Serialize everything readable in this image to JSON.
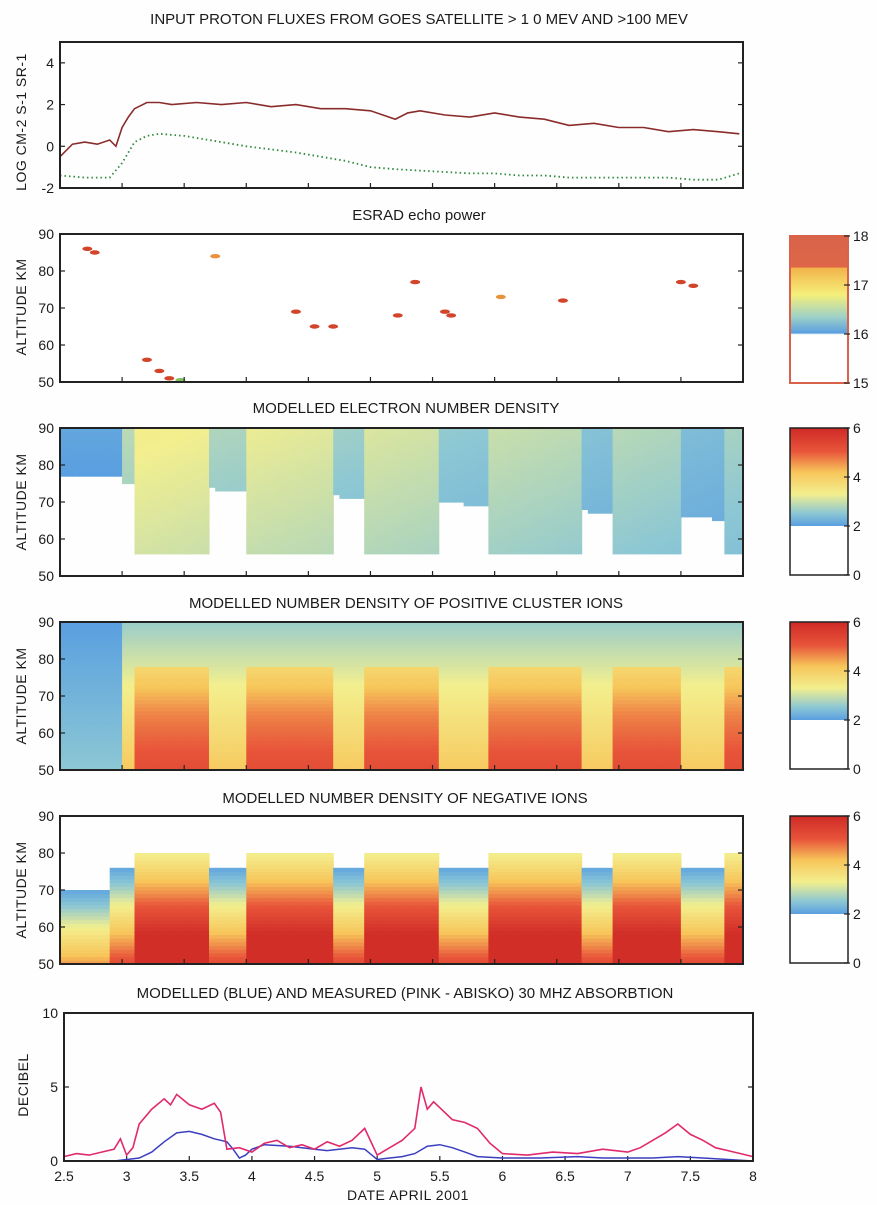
{
  "chart_data": [
    {
      "type": "line",
      "title": "INPUT PROTON FLUXES FROM GOES SATELLITE > 1 0 MEV AND >100 MEV",
      "ylabel": "LOG CM-2 S-1 SR-1",
      "xlim": [
        2.5,
        8
      ],
      "ylim": [
        -2,
        5
      ],
      "yticks": [
        "4",
        "2",
        "0",
        "-2"
      ],
      "series": [
        {
          "x": [
            2.5,
            2.6,
            2.7,
            2.8,
            2.9,
            2.95,
            3.0,
            3.05,
            3.1,
            3.2,
            3.3,
            3.4,
            3.6,
            3.8,
            4.0,
            4.2,
            4.4,
            4.6,
            4.8,
            5.0,
            5.1,
            5.2,
            5.3,
            5.4,
            5.6,
            5.8,
            6.0,
            6.2,
            6.4,
            6.6,
            6.8,
            7.0,
            7.2,
            7.4,
            7.6,
            7.8,
            7.97
          ],
          "values": [
            -0.5,
            0.1,
            0.2,
            0.1,
            0.3,
            0.0,
            0.9,
            1.4,
            1.8,
            2.1,
            2.1,
            2.0,
            2.1,
            2.0,
            2.1,
            1.9,
            2.0,
            1.8,
            1.8,
            1.7,
            1.5,
            1.3,
            1.6,
            1.7,
            1.5,
            1.4,
            1.6,
            1.4,
            1.3,
            1.0,
            1.1,
            0.9,
            0.9,
            0.7,
            0.8,
            0.7,
            0.6
          ]
        },
        {
          "x": [
            2.5,
            2.7,
            2.9,
            3.0,
            3.1,
            3.2,
            3.3,
            3.5,
            3.7,
            4.0,
            4.4,
            4.8,
            5.0,
            5.2,
            5.5,
            5.8,
            6.0,
            6.2,
            6.4,
            6.6,
            6.8,
            7.0,
            7.2,
            7.4,
            7.6,
            7.8,
            7.97
          ],
          "values": [
            -1.4,
            -1.5,
            -1.5,
            -0.8,
            0.2,
            0.5,
            0.6,
            0.5,
            0.3,
            0.0,
            -0.3,
            -0.7,
            -1.0,
            -1.1,
            -1.2,
            -1.3,
            -1.3,
            -1.4,
            -1.4,
            -1.5,
            -1.5,
            -1.5,
            -1.5,
            -1.5,
            -1.6,
            -1.6,
            -1.3
          ]
        }
      ]
    },
    {
      "type": "heatmap",
      "title": "ESRAD echo power",
      "ylabel": "ALTITUDE KM",
      "xlim": [
        2.5,
        8
      ],
      "ylim": [
        50,
        90
      ],
      "yticks": [
        "90",
        "80",
        "70",
        "60",
        "50"
      ],
      "colorbar": {
        "min": 15,
        "max": 18,
        "ticks": [
          "18",
          "17",
          "16",
          "15"
        ]
      },
      "echoes": [
        {
          "x": 2.72,
          "alt": 86,
          "power": 17.9
        },
        {
          "x": 2.78,
          "alt": 85,
          "power": 17.8
        },
        {
          "x": 3.2,
          "alt": 56,
          "power": 17.9
        },
        {
          "x": 3.3,
          "alt": 53,
          "power": 17.8
        },
        {
          "x": 3.38,
          "alt": 51,
          "power": 17.9
        },
        {
          "x": 3.47,
          "alt": 50.5,
          "power": 17.2
        },
        {
          "x": 3.75,
          "alt": 84,
          "power": 17.6
        },
        {
          "x": 4.4,
          "alt": 69,
          "power": 17.8
        },
        {
          "x": 4.55,
          "alt": 65,
          "power": 17.9
        },
        {
          "x": 4.7,
          "alt": 65,
          "power": 17.9
        },
        {
          "x": 5.22,
          "alt": 68,
          "power": 17.7
        },
        {
          "x": 5.36,
          "alt": 77,
          "power": 17.9
        },
        {
          "x": 5.6,
          "alt": 69,
          "power": 17.9
        },
        {
          "x": 5.65,
          "alt": 68,
          "power": 17.8
        },
        {
          "x": 6.05,
          "alt": 73,
          "power": 17.5
        },
        {
          "x": 6.55,
          "alt": 72,
          "power": 17.8
        },
        {
          "x": 7.5,
          "alt": 77,
          "power": 17.9
        },
        {
          "x": 7.6,
          "alt": 76,
          "power": 17.7
        }
      ]
    },
    {
      "type": "heatmap",
      "title": "MODELLED ELECTRON NUMBER DENSITY",
      "ylabel": "ALTITUDE KM",
      "xlim": [
        2.5,
        8
      ],
      "ylim": [
        50,
        90
      ],
      "yticks": [
        "90",
        "80",
        "70",
        "60",
        "50"
      ],
      "colorbar": {
        "min": 0,
        "max": 6,
        "ticks": [
          "6",
          "4",
          "2",
          "0"
        ]
      },
      "model": "electron"
    },
    {
      "type": "heatmap",
      "title": "MODELLED NUMBER DENSITY OF POSITIVE CLUSTER IONS",
      "ylabel": "ALTITUDE KM",
      "xlim": [
        2.5,
        8
      ],
      "ylim": [
        50,
        90
      ],
      "yticks": [
        "90",
        "80",
        "70",
        "60",
        "50"
      ],
      "colorbar": {
        "min": 0,
        "max": 6,
        "ticks": [
          "6",
          "4",
          "2",
          "0"
        ]
      },
      "model": "positive"
    },
    {
      "type": "heatmap",
      "title": "MODELLED NUMBER DENSITY OF NEGATIVE IONS",
      "ylabel": "ALTITUDE KM",
      "xlim": [
        2.5,
        8
      ],
      "ylim": [
        50,
        90
      ],
      "yticks": [
        "90",
        "80",
        "70",
        "60",
        "50"
      ],
      "colorbar": {
        "min": 0,
        "max": 6,
        "ticks": [
          "6",
          "4",
          "2",
          "0"
        ]
      },
      "model": "negative"
    },
    {
      "type": "line",
      "title": "MODELLED (BLUE) AND MEASURED (PINK - ABISKO) 30 MHZ ABSORBTION",
      "ylabel": "DECIBEL",
      "xlabel": "DATE APRIL 2001",
      "xlim": [
        2.5,
        8
      ],
      "ylim": [
        0,
        10
      ],
      "yticks": [
        "10",
        "5",
        "0"
      ],
      "xticks": [
        "2.5",
        "3",
        "3.5",
        "4",
        "4.5",
        "5",
        "5.5",
        "6",
        "6.5",
        "7",
        "7.5",
        "8"
      ],
      "series": [
        {
          "x": [
            2.5,
            2.8,
            2.9,
            3.0,
            3.1,
            3.2,
            3.3,
            3.4,
            3.5,
            3.6,
            3.7,
            3.8,
            3.85,
            3.9,
            3.95,
            4.0,
            4.1,
            4.3,
            4.5,
            4.6,
            4.8,
            4.9,
            5.0,
            5.1,
            5.2,
            5.3,
            5.4,
            5.5,
            5.6,
            5.7,
            5.8,
            6.0,
            6.3,
            6.6,
            6.8,
            7.0,
            7.2,
            7.4,
            7.6,
            7.8,
            8.0
          ],
          "values": [
            0.0,
            0.0,
            0.0,
            0.1,
            0.2,
            0.6,
            1.3,
            1.9,
            2.0,
            1.8,
            1.5,
            1.3,
            0.8,
            0.2,
            0.4,
            0.8,
            1.1,
            1.0,
            0.8,
            0.7,
            0.9,
            0.8,
            0.1,
            0.2,
            0.3,
            0.5,
            1.0,
            1.1,
            0.9,
            0.6,
            0.3,
            0.2,
            0.2,
            0.3,
            0.2,
            0.2,
            0.2,
            0.3,
            0.2,
            0.1,
            0.0
          ]
        },
        {
          "x": [
            2.5,
            2.6,
            2.7,
            2.8,
            2.9,
            2.95,
            3.0,
            3.05,
            3.1,
            3.2,
            3.3,
            3.35,
            3.4,
            3.5,
            3.6,
            3.7,
            3.75,
            3.8,
            3.9,
            4.0,
            4.1,
            4.2,
            4.3,
            4.4,
            4.5,
            4.6,
            4.7,
            4.8,
            4.9,
            5.0,
            5.1,
            5.2,
            5.3,
            5.35,
            5.4,
            5.45,
            5.5,
            5.6,
            5.7,
            5.8,
            5.9,
            6.0,
            6.2,
            6.4,
            6.6,
            6.8,
            7.0,
            7.1,
            7.2,
            7.3,
            7.4,
            7.5,
            7.6,
            7.7,
            7.8,
            7.9,
            8.0
          ],
          "values": [
            0.3,
            0.5,
            0.4,
            0.6,
            0.8,
            1.5,
            0.4,
            0.9,
            2.5,
            3.5,
            4.2,
            3.8,
            4.5,
            3.8,
            3.5,
            3.9,
            3.3,
            0.8,
            0.9,
            0.6,
            1.2,
            1.4,
            0.9,
            1.1,
            0.8,
            1.3,
            1.0,
            1.4,
            2.2,
            0.4,
            0.9,
            1.4,
            2.2,
            5.0,
            3.5,
            4.0,
            3.6,
            2.8,
            2.6,
            2.2,
            1.2,
            0.5,
            0.4,
            0.6,
            0.5,
            0.8,
            0.6,
            0.9,
            1.4,
            1.9,
            2.5,
            1.8,
            1.4,
            0.9,
            0.7,
            0.5,
            0.3
          ]
        }
      ]
    }
  ],
  "colors": {
    "goes_high": "#8b2c2c",
    "goes_low": "#2f8a3c",
    "modelled": "#3b3fbf",
    "measured": "#e02a6d",
    "frame": "#222222",
    "echo": "#d2452a"
  }
}
